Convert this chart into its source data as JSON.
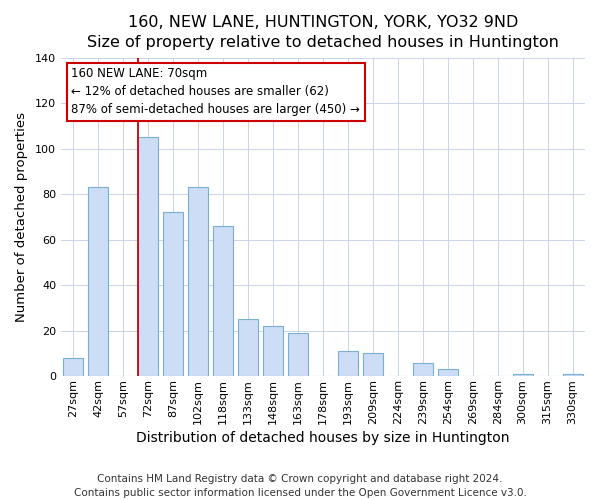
{
  "title": "160, NEW LANE, HUNTINGTON, YORK, YO32 9ND",
  "subtitle": "Size of property relative to detached houses in Huntington",
  "xlabel": "Distribution of detached houses by size in Huntington",
  "ylabel": "Number of detached properties",
  "bin_labels": [
    "27sqm",
    "42sqm",
    "57sqm",
    "72sqm",
    "87sqm",
    "102sqm",
    "118sqm",
    "133sqm",
    "148sqm",
    "163sqm",
    "178sqm",
    "193sqm",
    "209sqm",
    "224sqm",
    "239sqm",
    "254sqm",
    "269sqm",
    "284sqm",
    "300sqm",
    "315sqm",
    "330sqm"
  ],
  "bar_values": [
    8,
    83,
    0,
    105,
    72,
    83,
    66,
    25,
    22,
    19,
    0,
    11,
    10,
    0,
    6,
    3,
    0,
    0,
    1,
    0,
    1
  ],
  "bar_color": "#ccddf5",
  "bar_edge_color": "#7aafd4",
  "vline_color": "#cc0000",
  "vline_index": 3,
  "annotation_line1": "160 NEW LANE: 70sqm",
  "annotation_line2": "← 12% of detached houses are smaller (62)",
  "annotation_line3": "87% of semi-detached houses are larger (450) →",
  "annotation_box_color": "white",
  "annotation_box_edge": "#cc0000",
  "ylim": [
    0,
    140
  ],
  "yticks": [
    0,
    20,
    40,
    60,
    80,
    100,
    120,
    140
  ],
  "grid_color": "#c8d4e8",
  "footer1": "Contains HM Land Registry data © Crown copyright and database right 2024.",
  "footer2": "Contains public sector information licensed under the Open Government Licence v3.0.",
  "title_fontsize": 11.5,
  "xlabel_fontsize": 10,
  "ylabel_fontsize": 9.5,
  "tick_fontsize": 8,
  "footer_fontsize": 7.5,
  "annotation_fontsize": 8.5,
  "bar_width": 0.8
}
